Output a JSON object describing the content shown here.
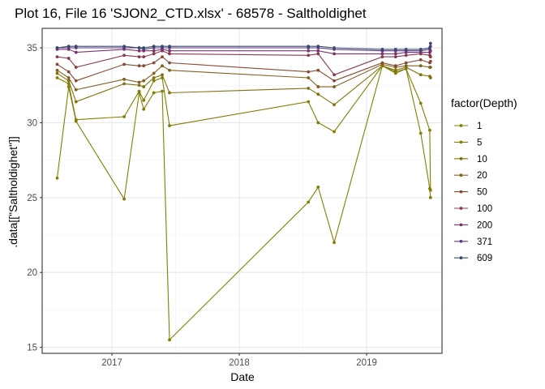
{
  "chart_data": {
    "type": "line",
    "title": "Plot 16, File 16 'SJON2_CTD.xlsx' - 68578  -  Saltholdighet",
    "xlabel": "Date",
    "ylabel": ".data[[\"Saltholdighet\"]]",
    "x_axis_type": "date",
    "xlim": [
      "2016-06-15",
      "2019-08-05"
    ],
    "ylim": [
      14.6,
      36.3
    ],
    "x_ticks": [
      {
        "label": "2017",
        "date": "2017-01-01"
      },
      {
        "label": "2018",
        "date": "2018-01-01"
      },
      {
        "label": "2019",
        "date": "2019-01-01"
      }
    ],
    "y_ticks": [
      15,
      20,
      25,
      30,
      35
    ],
    "grid": true,
    "legend": {
      "title": "factor(Depth)",
      "position": "right"
    },
    "x": [
      "2016-07-28",
      "2016-08-30",
      "2016-09-20",
      "2017-02-05",
      "2017-03-20",
      "2017-04-02",
      "2017-05-01",
      "2017-05-25",
      "2017-06-15",
      "2018-07-18",
      "2018-08-15",
      "2018-09-30",
      "2019-02-15",
      "2019-03-25",
      "2019-04-24",
      "2019-06-05",
      "2019-07-01",
      "2019-07-03"
    ],
    "series": [
      {
        "name": "1",
        "color": "#808000",
        "values": [
          26.3,
          32.4,
          30.1,
          24.9,
          32.0,
          30.9,
          32.0,
          32.1,
          15.5,
          24.7,
          25.7,
          22.0,
          33.8,
          33.3,
          33.6,
          29.3,
          25.6,
          25.0
        ]
      },
      {
        "name": "5",
        "color": "#817e00",
        "values": [
          33.0,
          32.6,
          30.2,
          30.4,
          32.1,
          31.5,
          32.8,
          33.0,
          29.8,
          31.4,
          30.0,
          29.4,
          33.8,
          33.4,
          33.6,
          31.3,
          29.5,
          25.5
        ]
      },
      {
        "name": "10",
        "color": "#82720d",
        "values": [
          33.3,
          32.8,
          31.4,
          32.6,
          32.5,
          32.4,
          33.0,
          33.2,
          32.0,
          32.3,
          31.9,
          31.2,
          33.8,
          33.5,
          33.7,
          33.2,
          33.1,
          33.0
        ]
      },
      {
        "name": "20",
        "color": "#84601e",
        "values": [
          33.5,
          33.0,
          32.2,
          32.9,
          32.7,
          32.8,
          33.3,
          33.8,
          33.5,
          33.0,
          32.4,
          32.4,
          33.9,
          33.7,
          33.8,
          33.8,
          33.7,
          33.7
        ]
      },
      {
        "name": "50",
        "color": "#864c33",
        "values": [
          33.9,
          33.4,
          32.8,
          33.9,
          33.8,
          33.8,
          34.0,
          34.4,
          34.0,
          33.4,
          33.5,
          32.8,
          34.0,
          33.8,
          34.0,
          34.2,
          34.0,
          34.1
        ]
      },
      {
        "name": "100",
        "color": "#883b4f",
        "values": [
          34.4,
          34.3,
          33.7,
          34.5,
          34.4,
          34.4,
          34.6,
          34.8,
          34.6,
          34.5,
          34.6,
          33.2,
          34.4,
          34.4,
          34.5,
          34.6,
          34.5,
          34.4
        ]
      },
      {
        "name": "200",
        "color": "#7e3370",
        "values": [
          34.9,
          34.9,
          34.7,
          34.9,
          34.8,
          34.8,
          34.8,
          34.9,
          34.8,
          34.8,
          34.8,
          34.6,
          34.6,
          34.6,
          34.7,
          34.7,
          34.7,
          34.8
        ]
      },
      {
        "name": "371",
        "color": "#5e3a7e",
        "values": [
          35.0,
          35.0,
          35.0,
          35.0,
          35.0,
          34.9,
          35.0,
          35.0,
          35.0,
          35.0,
          35.0,
          34.9,
          34.8,
          34.8,
          34.8,
          34.8,
          34.9,
          35.1
        ]
      },
      {
        "name": "609",
        "color": "#364a6e",
        "values": [
          35.0,
          35.1,
          35.1,
          35.1,
          35.0,
          35.0,
          35.1,
          35.1,
          35.1,
          35.1,
          35.1,
          35.0,
          34.9,
          34.9,
          34.9,
          34.9,
          35.0,
          35.3
        ]
      }
    ]
  }
}
